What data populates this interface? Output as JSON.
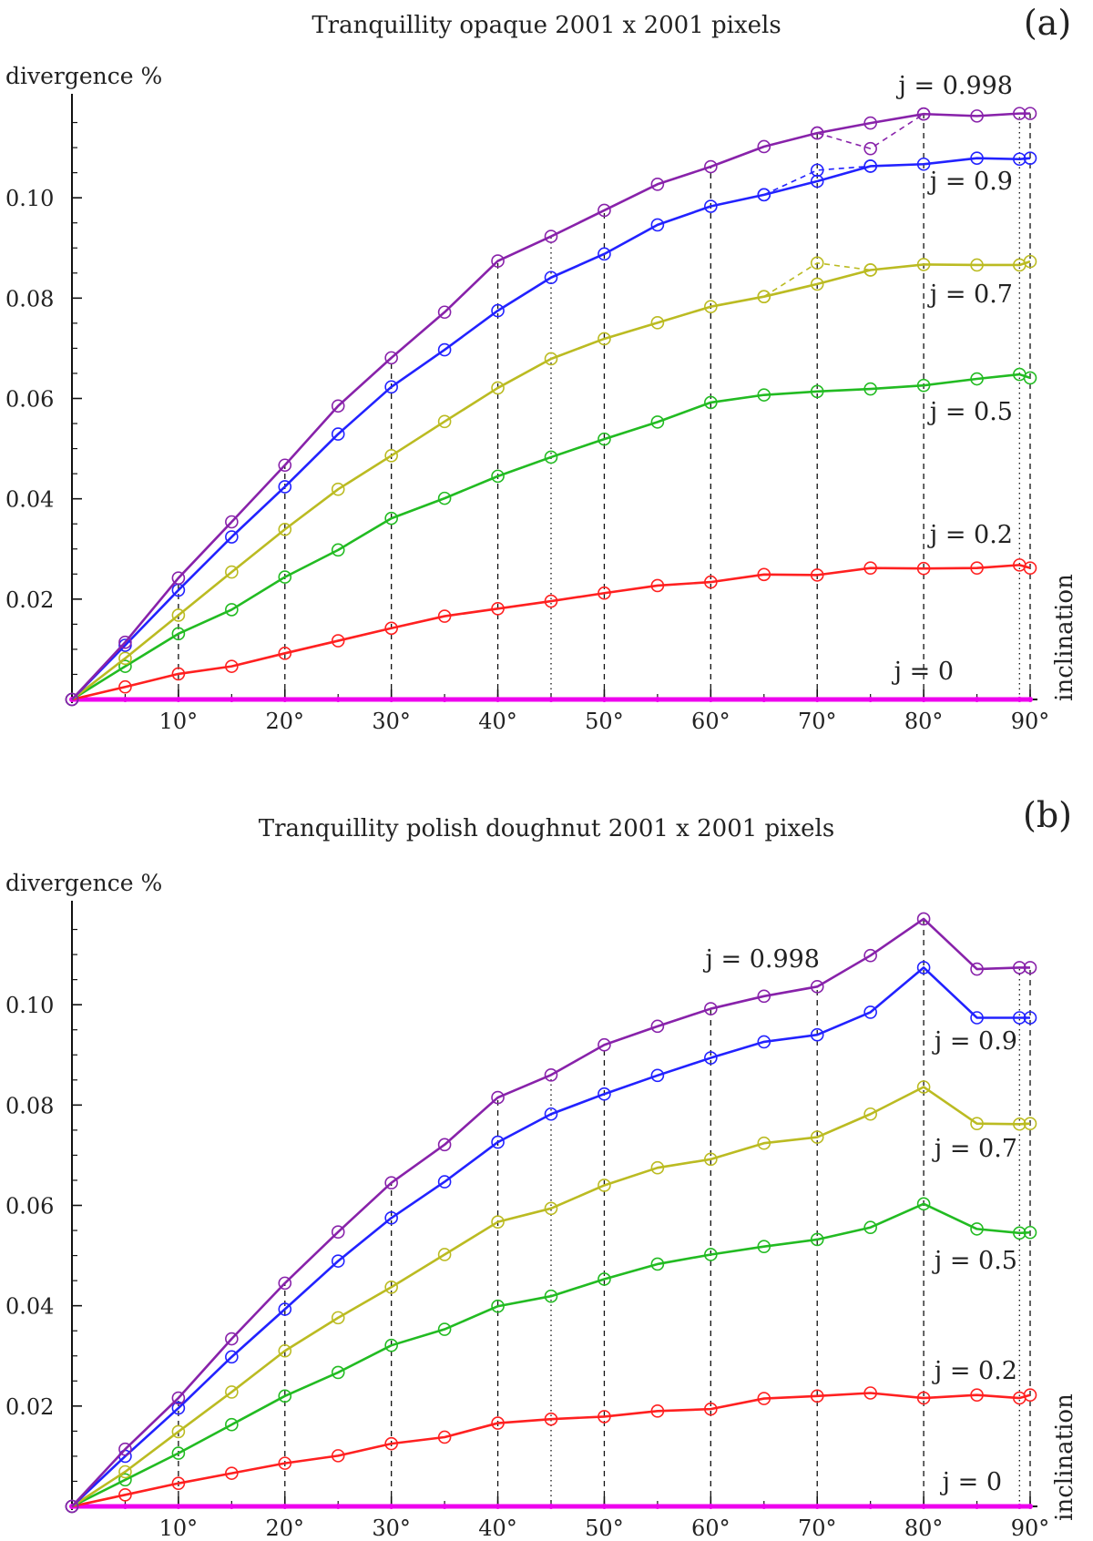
{
  "chart_data": [
    {
      "type": "line",
      "panel": "(a)",
      "title": "Tranquillity opaque 2001 x 2001 pixels",
      "xlabel": "inclination",
      "ylabel": "divergence %",
      "xlim": [
        0,
        90
      ],
      "ylim": [
        0,
        0.12
      ],
      "xticks": [
        10,
        20,
        30,
        40,
        50,
        60,
        70,
        80,
        90
      ],
      "xtick_labels": [
        "10°",
        "20°",
        "30°",
        "40°",
        "50°",
        "60°",
        "70°",
        "80°",
        "90°"
      ],
      "yticks": [
        0.02,
        0.04,
        0.06,
        0.08,
        0.1
      ],
      "ytick_labels": [
        "0.02",
        "0.04",
        "0.06",
        "0.08",
        "0.10"
      ],
      "dashed_verticals": [
        10,
        20,
        30,
        40,
        50,
        60,
        70,
        80,
        90
      ],
      "dotted_verticals": [
        45,
        89
      ],
      "series": [
        {
          "name": "j = 0",
          "label": "j = 0",
          "color": "#ee00ee",
          "x": [
            0,
            5,
            10,
            15,
            20,
            25,
            30,
            35,
            40,
            45,
            50,
            55,
            60,
            65,
            70,
            75,
            80,
            85,
            89,
            90
          ],
          "values": [
            0,
            0,
            0,
            0,
            0,
            0,
            0,
            0,
            0,
            0,
            0,
            0,
            0,
            0,
            0,
            0,
            0,
            0,
            0,
            0
          ]
        },
        {
          "name": "j = 0.2",
          "label": "j = 0.2",
          "color": "#ff2020",
          "x": [
            0,
            5,
            10,
            15,
            20,
            25,
            30,
            35,
            40,
            45,
            50,
            55,
            60,
            65,
            70,
            75,
            80,
            85,
            89,
            90
          ],
          "values": [
            0,
            0.0025,
            0.0051,
            0.0066,
            0.0092,
            0.0117,
            0.0142,
            0.0166,
            0.0181,
            0.0196,
            0.0212,
            0.0227,
            0.0234,
            0.0249,
            0.0248,
            0.0262,
            0.0261,
            0.0262,
            0.0268,
            0.0262
          ]
        },
        {
          "name": "j = 0.5",
          "label": "j = 0.5",
          "color": "#22bb22",
          "x": [
            0,
            5,
            10,
            15,
            20,
            25,
            30,
            35,
            40,
            45,
            50,
            55,
            60,
            65,
            70,
            75,
            80,
            85,
            89,
            90
          ],
          "values": [
            0,
            0.0066,
            0.0131,
            0.0179,
            0.0244,
            0.0298,
            0.0361,
            0.0401,
            0.0445,
            0.0483,
            0.0519,
            0.0553,
            0.0592,
            0.0607,
            0.0614,
            0.0619,
            0.0626,
            0.0639,
            0.0648,
            0.0641
          ]
        },
        {
          "name": "j = 0.7",
          "label": "j = 0.7",
          "color": "#bbbb22",
          "x": [
            0,
            5,
            10,
            15,
            20,
            25,
            30,
            35,
            40,
            45,
            50,
            55,
            60,
            65,
            70,
            75,
            80,
            85,
            89,
            90
          ],
          "values": [
            0,
            0.0082,
            0.0168,
            0.0254,
            0.0339,
            0.0419,
            0.0486,
            0.0554,
            0.0621,
            0.0679,
            0.0719,
            0.0751,
            0.0783,
            0.0803,
            0.0828,
            0.0856,
            0.0867,
            0.0866,
            0.0866,
            0.0873
          ]
        },
        {
          "name": "j = 0.9",
          "label": "j = 0.9",
          "color": "#2222ff",
          "x": [
            0,
            5,
            10,
            15,
            20,
            25,
            30,
            35,
            40,
            45,
            50,
            55,
            60,
            65,
            70,
            75,
            80,
            85,
            89,
            90
          ],
          "values": [
            0,
            0.0108,
            0.0218,
            0.0324,
            0.0424,
            0.0529,
            0.0623,
            0.0697,
            0.0775,
            0.0841,
            0.0888,
            0.0946,
            0.0983,
            0.1006,
            0.1033,
            0.1063,
            0.1067,
            0.1079,
            0.1077,
            0.1079
          ]
        },
        {
          "name": "j = 0.998",
          "label": "j = 0.998",
          "color": "#8822aa",
          "x": [
            0,
            5,
            10,
            15,
            20,
            25,
            30,
            35,
            40,
            45,
            50,
            55,
            60,
            65,
            70,
            75,
            80,
            85,
            89,
            90
          ],
          "values": [
            0,
            0.0114,
            0.0242,
            0.0354,
            0.0467,
            0.0585,
            0.0681,
            0.0772,
            0.0874,
            0.0923,
            0.0975,
            0.1027,
            0.1062,
            0.1102,
            0.1129,
            0.1149,
            0.1167,
            0.1163,
            0.1168,
            0.1168
          ]
        }
      ],
      "dashed_branches": [
        {
          "color": "#8822aa",
          "x": [
            70,
            75,
            80
          ],
          "values": [
            0.1129,
            0.1098,
            0.1167
          ]
        },
        {
          "color": "#2222ff",
          "x": [
            65,
            70,
            75
          ],
          "values": [
            0.1006,
            0.1055,
            0.1063
          ]
        },
        {
          "color": "#bbbb22",
          "x": [
            65,
            70,
            75
          ],
          "values": [
            0.0803,
            0.087,
            0.0856
          ]
        }
      ]
    },
    {
      "type": "line",
      "panel": "(b)",
      "title": "Tranquillity polish doughnut 2001 x 2001 pixels",
      "xlabel": "inclination",
      "ylabel": "divergence %",
      "xlim": [
        0,
        90
      ],
      "ylim": [
        0,
        0.12
      ],
      "xticks": [
        10,
        20,
        30,
        40,
        50,
        60,
        70,
        80,
        90
      ],
      "xtick_labels": [
        "10°",
        "20°",
        "30°",
        "40°",
        "50°",
        "60°",
        "70°",
        "80°",
        "90°"
      ],
      "yticks": [
        0.02,
        0.04,
        0.06,
        0.08,
        0.1
      ],
      "ytick_labels": [
        "0.02",
        "0.04",
        "0.06",
        "0.08",
        "0.10"
      ],
      "dashed_verticals": [
        10,
        20,
        30,
        40,
        50,
        60,
        70,
        80,
        90
      ],
      "dotted_verticals": [
        45,
        89
      ],
      "series": [
        {
          "name": "j = 0",
          "label": "j = 0",
          "color": "#ee00ee",
          "x": [
            0,
            5,
            10,
            15,
            20,
            25,
            30,
            35,
            40,
            45,
            50,
            55,
            60,
            65,
            70,
            75,
            80,
            85,
            89,
            90
          ],
          "values": [
            0,
            0,
            0,
            0,
            0,
            0,
            0,
            0,
            0,
            0,
            0,
            0,
            0,
            0,
            0,
            0,
            0,
            0,
            0,
            0
          ]
        },
        {
          "name": "j = 0.2",
          "label": "j = 0.2",
          "color": "#ff2020",
          "x": [
            0,
            5,
            10,
            15,
            20,
            25,
            30,
            35,
            40,
            45,
            50,
            55,
            60,
            65,
            70,
            75,
            80,
            85,
            89,
            90
          ],
          "values": [
            0,
            0.0023,
            0.0046,
            0.0066,
            0.0086,
            0.0101,
            0.0125,
            0.0138,
            0.0166,
            0.0174,
            0.0179,
            0.019,
            0.0194,
            0.0215,
            0.022,
            0.0226,
            0.0216,
            0.0222,
            0.0216,
            0.0222
          ]
        },
        {
          "name": "j = 0.5",
          "label": "j = 0.5",
          "color": "#22bb22",
          "x": [
            0,
            5,
            10,
            15,
            20,
            25,
            30,
            35,
            40,
            45,
            50,
            55,
            60,
            65,
            70,
            75,
            80,
            85,
            89,
            90
          ],
          "values": [
            0,
            0.0053,
            0.0106,
            0.0163,
            0.022,
            0.0267,
            0.0321,
            0.0353,
            0.0399,
            0.0419,
            0.0453,
            0.0483,
            0.0502,
            0.0518,
            0.0532,
            0.0556,
            0.0603,
            0.0553,
            0.0545,
            0.0546
          ]
        },
        {
          "name": "j = 0.7",
          "label": "j = 0.7",
          "color": "#bbbb22",
          "x": [
            0,
            5,
            10,
            15,
            20,
            25,
            30,
            35,
            40,
            45,
            50,
            55,
            60,
            65,
            70,
            75,
            80,
            85,
            89,
            90
          ],
          "values": [
            0,
            0.0069,
            0.0149,
            0.0228,
            0.031,
            0.0376,
            0.0437,
            0.0502,
            0.0567,
            0.0594,
            0.064,
            0.0675,
            0.0692,
            0.0724,
            0.0736,
            0.0782,
            0.0836,
            0.0763,
            0.0762,
            0.0763
          ]
        },
        {
          "name": "j = 0.9",
          "label": "j = 0.9",
          "color": "#2222ff",
          "x": [
            0,
            5,
            10,
            15,
            20,
            25,
            30,
            35,
            40,
            45,
            50,
            55,
            60,
            65,
            70,
            75,
            80,
            85,
            89,
            90
          ],
          "values": [
            0,
            0.01,
            0.0196,
            0.0298,
            0.0393,
            0.0489,
            0.0575,
            0.0647,
            0.0726,
            0.0782,
            0.0822,
            0.0859,
            0.0894,
            0.0926,
            0.094,
            0.0985,
            0.1074,
            0.0974,
            0.0974,
            0.0974
          ]
        },
        {
          "name": "j = 0.998",
          "label": "j = 0.998",
          "color": "#8822aa",
          "x": [
            0,
            5,
            10,
            15,
            20,
            25,
            30,
            35,
            40,
            45,
            50,
            55,
            60,
            65,
            70,
            75,
            80,
            85,
            89,
            90
          ],
          "values": [
            0,
            0.0114,
            0.0216,
            0.0334,
            0.0445,
            0.0547,
            0.0645,
            0.0721,
            0.0815,
            0.086,
            0.092,
            0.0957,
            0.0992,
            0.1017,
            0.1036,
            0.1098,
            0.1171,
            0.1071,
            0.1074,
            0.1074
          ]
        }
      ],
      "dashed_branches": []
    }
  ]
}
